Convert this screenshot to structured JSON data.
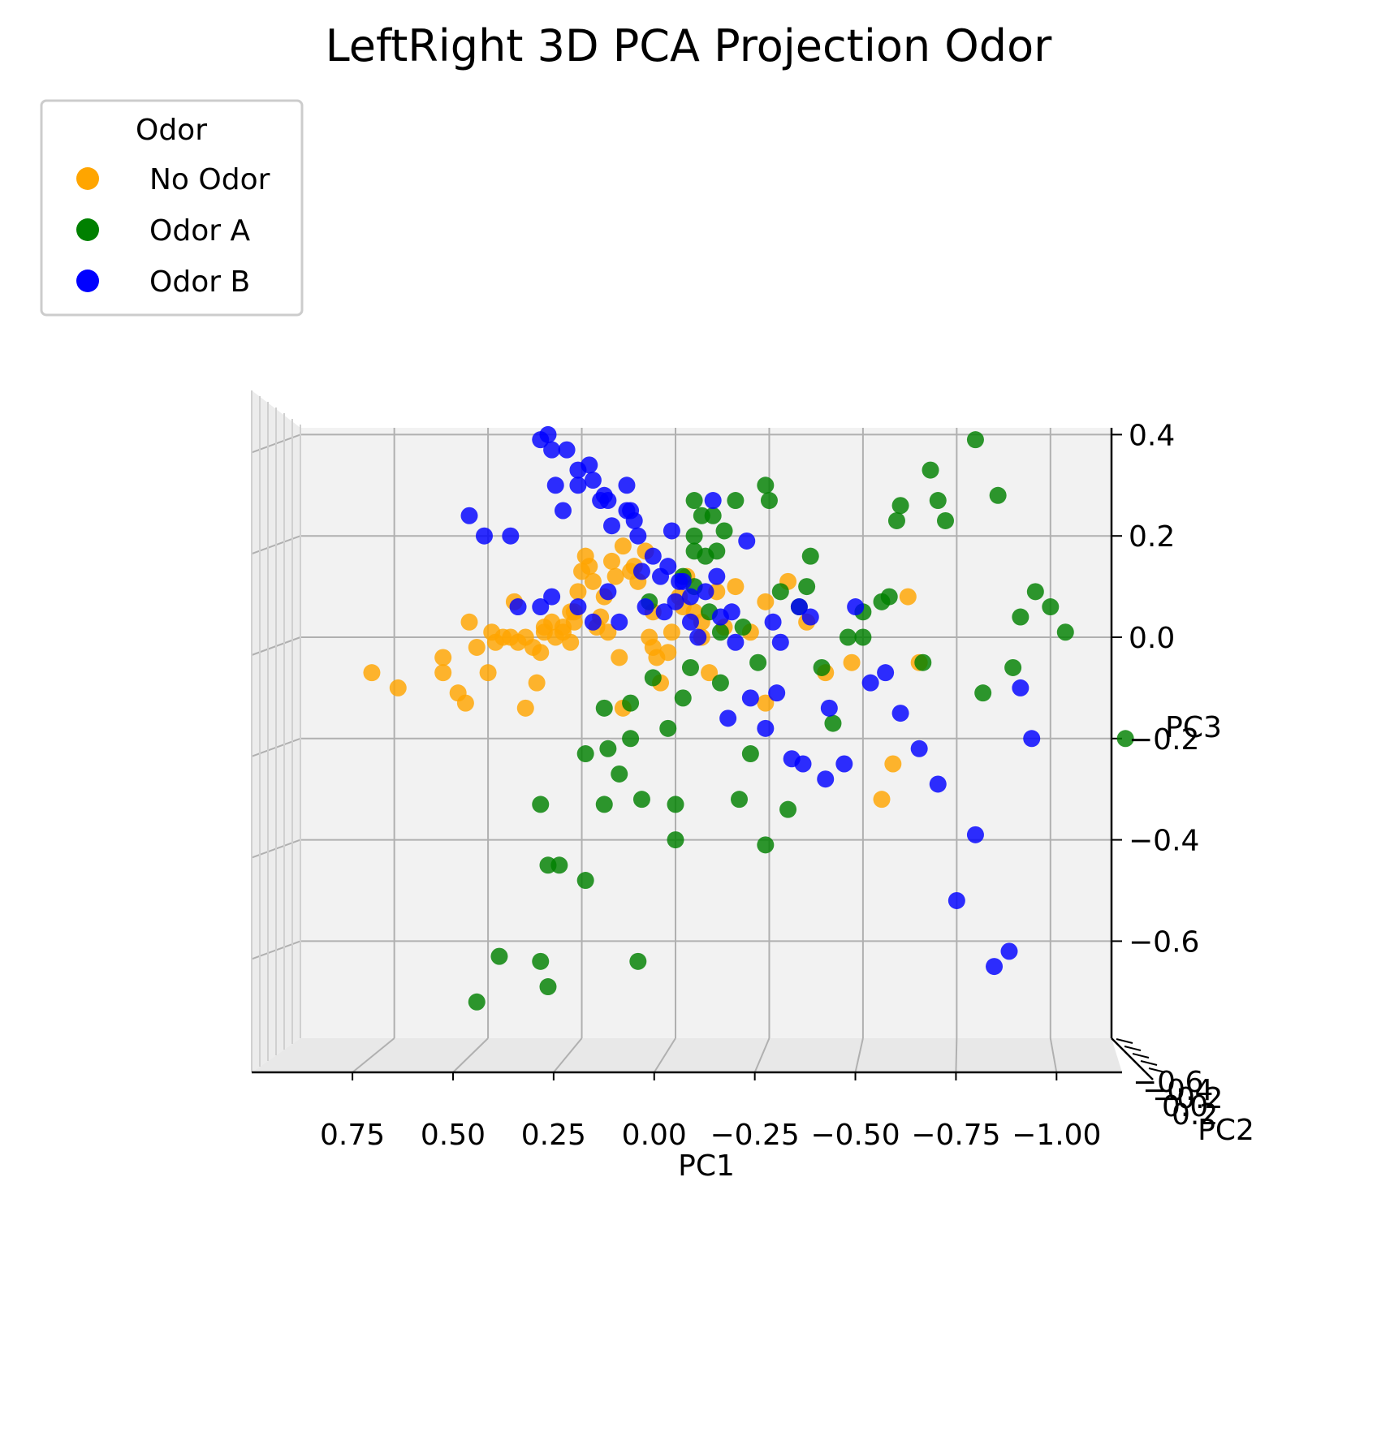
{
  "chart_data": {
    "type": "scatter",
    "title": "LeftRight 3D PCA Projection Odor",
    "xlabel": "PC1",
    "ylabel": "PC2",
    "zlabel": "PC3",
    "xlim": [
      0.95,
      -1.1
    ],
    "zlim": [
      -0.75,
      0.42
    ],
    "x_ticks": [
      "0.75",
      "0.50",
      "0.25",
      "0.00",
      "−0.25",
      "−0.50",
      "−0.75",
      "−1.00"
    ],
    "z_ticks": [
      "0.4",
      "0.2",
      "0.0",
      "−0.2",
      "−0.4",
      "−0.6"
    ],
    "y_ticks_overlapping": [
      "−0.6",
      "−0.4",
      "−0.2",
      "0.0",
      "0.2"
    ],
    "grid": true,
    "legend": {
      "title": "Odor",
      "placement": "top-left",
      "entries": [
        {
          "label": "No Odor",
          "color": "#ffa500"
        },
        {
          "label": "Odor A",
          "color": "#008000"
        },
        {
          "label": "Odor B",
          "color": "#0000ff"
        }
      ]
    },
    "series": [
      {
        "name": "No Odor",
        "color": "#ffa500",
        "points": [
          [
            0.81,
            -0.07
          ],
          [
            0.74,
            -0.1
          ],
          [
            0.62,
            -0.04
          ],
          [
            0.62,
            -0.07
          ],
          [
            0.56,
            -0.13
          ],
          [
            0.58,
            -0.11
          ],
          [
            0.53,
            -0.02
          ],
          [
            0.55,
            0.03
          ],
          [
            0.49,
            0.01
          ],
          [
            0.48,
            -0.01
          ],
          [
            0.46,
            0.0
          ],
          [
            0.44,
            0.0
          ],
          [
            0.43,
            0.07
          ],
          [
            0.42,
            -0.01
          ],
          [
            0.4,
            0.0
          ],
          [
            0.38,
            -0.02
          ],
          [
            0.36,
            -0.03
          ],
          [
            0.35,
            0.01
          ],
          [
            0.33,
            0.03
          ],
          [
            0.32,
            0.0
          ],
          [
            0.3,
            0.02
          ],
          [
            0.28,
            0.05
          ],
          [
            0.27,
            0.03
          ],
          [
            0.26,
            0.09
          ],
          [
            0.25,
            0.13
          ],
          [
            0.24,
            0.16
          ],
          [
            0.23,
            0.14
          ],
          [
            0.22,
            0.11
          ],
          [
            0.21,
            0.02
          ],
          [
            0.2,
            0.04
          ],
          [
            0.18,
            0.01
          ],
          [
            0.17,
            0.15
          ],
          [
            0.16,
            0.12
          ],
          [
            0.15,
            -0.04
          ],
          [
            0.14,
            0.18
          ],
          [
            0.12,
            0.13
          ],
          [
            0.1,
            0.11
          ],
          [
            0.08,
            0.17
          ],
          [
            0.06,
            0.05
          ],
          [
            0.05,
            -0.04
          ],
          [
            0.04,
            -0.09
          ],
          [
            0.02,
            -0.03
          ],
          [
            0.01,
            0.01
          ],
          [
            -0.01,
            0.08
          ],
          [
            -0.03,
            0.12
          ],
          [
            -0.05,
            0.05
          ],
          [
            -0.07,
            0.0
          ],
          [
            -0.09,
            -0.07
          ],
          [
            -0.11,
            0.09
          ],
          [
            -0.13,
            0.02
          ],
          [
            -0.16,
            0.1
          ],
          [
            -0.2,
            0.01
          ],
          [
            -0.24,
            0.07
          ],
          [
            -0.3,
            0.11
          ],
          [
            -0.35,
            0.03
          ],
          [
            -0.4,
            -0.07
          ],
          [
            -0.47,
            -0.05
          ],
          [
            -0.55,
            -0.32
          ],
          [
            -0.58,
            -0.25
          ],
          [
            -0.62,
            0.08
          ],
          [
            -0.65,
            -0.05
          ],
          [
            0.5,
            -0.07
          ],
          [
            0.37,
            -0.09
          ],
          [
            0.4,
            -0.14
          ],
          [
            -0.24,
            -0.13
          ],
          [
            0.14,
            -0.14
          ],
          [
            0.35,
            0.02
          ],
          [
            0.3,
            0.01
          ],
          [
            0.28,
            -0.01
          ],
          [
            0.27,
            0.05
          ],
          [
            0.07,
            0.0
          ],
          [
            0.06,
            -0.02
          ],
          [
            -0.02,
            0.06
          ],
          [
            -0.07,
            0.03
          ],
          [
            0.11,
            0.14
          ],
          [
            0.19,
            0.08
          ]
        ]
      },
      {
        "name": "Odor A",
        "color": "#008000",
        "points": [
          [
            0.53,
            -0.72
          ],
          [
            0.47,
            -0.63
          ],
          [
            0.36,
            -0.64
          ],
          [
            0.34,
            -0.69
          ],
          [
            0.34,
            -0.45
          ],
          [
            0.36,
            -0.33
          ],
          [
            0.31,
            -0.45
          ],
          [
            0.24,
            -0.48
          ],
          [
            0.24,
            -0.23
          ],
          [
            0.18,
            -0.22
          ],
          [
            0.19,
            -0.33
          ],
          [
            0.12,
            -0.2
          ],
          [
            0.09,
            -0.32
          ],
          [
            0.1,
            -0.64
          ],
          [
            0.02,
            -0.18
          ],
          [
            0.0,
            -0.33
          ],
          [
            0.0,
            -0.4
          ],
          [
            -0.02,
            -0.12
          ],
          [
            -0.04,
            -0.06
          ],
          [
            -0.05,
            0.1
          ],
          [
            -0.05,
            0.17
          ],
          [
            -0.05,
            0.27
          ],
          [
            -0.07,
            0.24
          ],
          [
            -0.1,
            0.24
          ],
          [
            -0.12,
            -0.09
          ],
          [
            -0.11,
            0.17
          ],
          [
            -0.13,
            0.21
          ],
          [
            -0.16,
            0.27
          ],
          [
            -0.22,
            -0.05
          ],
          [
            -0.24,
            -0.41
          ],
          [
            -0.28,
            0.09
          ],
          [
            -0.3,
            -0.34
          ],
          [
            -0.33,
            0.06
          ],
          [
            -0.36,
            0.16
          ],
          [
            -0.39,
            -0.06
          ],
          [
            -0.42,
            -0.17
          ],
          [
            -0.46,
            0.0
          ],
          [
            -0.5,
            0.05
          ],
          [
            -0.55,
            0.07
          ],
          [
            -0.59,
            0.23
          ],
          [
            -0.6,
            0.26
          ],
          [
            -0.68,
            0.33
          ],
          [
            -0.7,
            0.27
          ],
          [
            -0.72,
            0.23
          ],
          [
            -0.8,
            0.39
          ],
          [
            -0.82,
            -0.11
          ],
          [
            -0.86,
            0.28
          ],
          [
            -0.9,
            -0.06
          ],
          [
            -0.92,
            0.04
          ],
          [
            -0.96,
            0.09
          ],
          [
            -1.0,
            0.06
          ],
          [
            -1.04,
            0.01
          ],
          [
            -0.17,
            -0.32
          ],
          [
            -0.2,
            -0.23
          ],
          [
            0.15,
            -0.27
          ],
          [
            0.12,
            -0.13
          ],
          [
            0.19,
            -0.14
          ],
          [
            -0.02,
            0.12
          ],
          [
            -0.05,
            0.2
          ],
          [
            -0.08,
            0.16
          ],
          [
            -0.12,
            0.01
          ],
          [
            -0.24,
            0.3
          ],
          [
            -0.25,
            0.27
          ],
          [
            -0.35,
            0.1
          ],
          [
            -0.18,
            0.02
          ],
          [
            -0.09,
            0.05
          ],
          [
            0.07,
            0.07
          ],
          [
            0.06,
            -0.08
          ],
          [
            -0.5,
            0.0
          ],
          [
            -0.57,
            0.08
          ],
          [
            -0.66,
            -0.05
          ],
          [
            -1.2,
            -0.2
          ]
        ]
      },
      {
        "name": "Odor B",
        "color": "#0000ff",
        "points": [
          [
            0.36,
            0.39
          ],
          [
            0.34,
            0.4
          ],
          [
            0.33,
            0.37
          ],
          [
            0.29,
            0.37
          ],
          [
            0.26,
            0.33
          ],
          [
            0.26,
            0.3
          ],
          [
            0.23,
            0.34
          ],
          [
            0.22,
            0.31
          ],
          [
            0.2,
            0.27
          ],
          [
            0.19,
            0.28
          ],
          [
            0.18,
            0.27
          ],
          [
            0.17,
            0.22
          ],
          [
            0.13,
            0.25
          ],
          [
            0.13,
            0.3
          ],
          [
            0.12,
            0.25
          ],
          [
            0.11,
            0.23
          ],
          [
            0.1,
            0.2
          ],
          [
            0.09,
            0.13
          ],
          [
            0.06,
            0.16
          ],
          [
            0.04,
            0.12
          ],
          [
            0.03,
            0.05
          ],
          [
            0.02,
            0.14
          ],
          [
            0.0,
            0.07
          ],
          [
            -0.02,
            0.11
          ],
          [
            -0.04,
            0.03
          ],
          [
            -0.06,
            0.0
          ],
          [
            -0.08,
            0.09
          ],
          [
            -0.1,
            0.27
          ],
          [
            -0.12,
            0.04
          ],
          [
            -0.16,
            -0.01
          ],
          [
            -0.2,
            -0.12
          ],
          [
            -0.24,
            -0.18
          ],
          [
            -0.28,
            -0.01
          ],
          [
            -0.31,
            -0.24
          ],
          [
            -0.34,
            -0.25
          ],
          [
            -0.4,
            -0.28
          ],
          [
            -0.45,
            -0.25
          ],
          [
            -0.48,
            0.06
          ],
          [
            -0.52,
            -0.09
          ],
          [
            -0.56,
            -0.07
          ],
          [
            -0.6,
            -0.15
          ],
          [
            -0.65,
            -0.22
          ],
          [
            -0.7,
            -0.29
          ],
          [
            -0.75,
            -0.52
          ],
          [
            -0.8,
            -0.39
          ],
          [
            -0.85,
            -0.65
          ],
          [
            -0.89,
            -0.62
          ],
          [
            -0.92,
            -0.1
          ],
          [
            -0.95,
            -0.2
          ],
          [
            0.55,
            0.24
          ],
          [
            0.51,
            0.2
          ],
          [
            0.44,
            0.2
          ],
          [
            0.42,
            0.06
          ],
          [
            0.36,
            0.06
          ],
          [
            0.33,
            0.08
          ],
          [
            0.32,
            0.3
          ],
          [
            0.3,
            0.25
          ],
          [
            0.26,
            0.06
          ],
          [
            0.22,
            0.03
          ],
          [
            0.18,
            0.09
          ],
          [
            0.15,
            0.03
          ],
          [
            0.08,
            0.06
          ],
          [
            -0.04,
            0.08
          ],
          [
            -0.01,
            0.11
          ],
          [
            0.01,
            0.21
          ],
          [
            -0.11,
            0.12
          ],
          [
            -0.15,
            0.05
          ],
          [
            -0.19,
            0.19
          ],
          [
            -0.26,
            0.03
          ],
          [
            -0.36,
            0.04
          ],
          [
            -0.41,
            -0.14
          ],
          [
            -0.33,
            0.06
          ],
          [
            -0.27,
            -0.11
          ],
          [
            -0.14,
            -0.16
          ]
        ]
      }
    ]
  }
}
